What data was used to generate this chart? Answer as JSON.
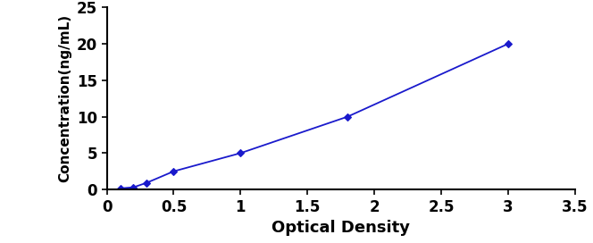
{
  "x_data": [
    0.1,
    0.2,
    0.3,
    0.5,
    1.0,
    1.8,
    3.0
  ],
  "y_data": [
    0.156,
    0.312,
    0.938,
    2.5,
    5.0,
    10.0,
    20.0
  ],
  "line_color": "#1a1acc",
  "marker": "D",
  "marker_size": 4,
  "marker_color": "#1a1acc",
  "xlabel": "Optical Density",
  "ylabel": "Concentration(ng/mL)",
  "xlim": [
    0,
    3.5
  ],
  "ylim": [
    0,
    25
  ],
  "xticks": [
    0,
    0.5,
    1.0,
    1.5,
    2.0,
    2.5,
    3.0,
    3.5
  ],
  "yticks": [
    0,
    5,
    10,
    15,
    20,
    25
  ],
  "xlabel_fontsize": 13,
  "ylabel_fontsize": 11,
  "tick_fontsize": 12,
  "background_color": "#ffffff",
  "line_width": 1.3
}
